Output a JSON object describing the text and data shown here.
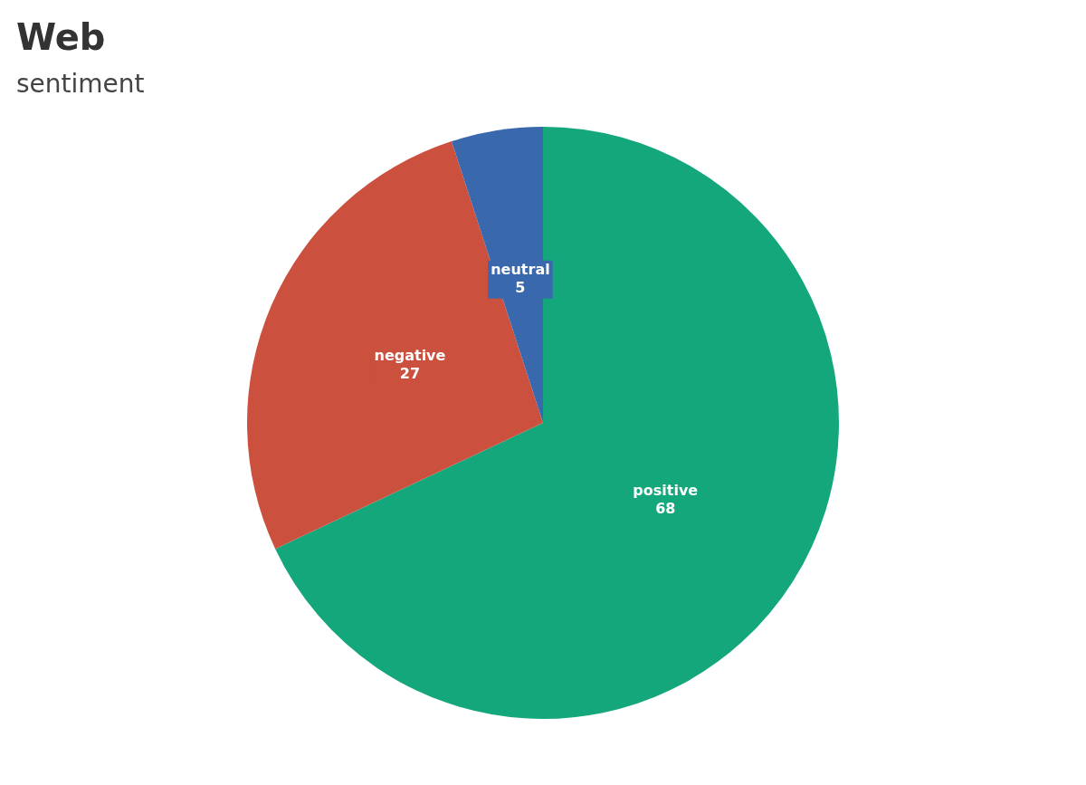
{
  "chart_data": {
    "type": "pie",
    "title": "Web",
    "subtitle": "sentiment",
    "categories": [
      "positive",
      "negative",
      "neutral"
    ],
    "values": [
      68,
      27,
      5
    ],
    "colors": [
      "#14a77b",
      "#cb503e",
      "#3a68ac"
    ],
    "data_labels": true,
    "legend": false
  }
}
